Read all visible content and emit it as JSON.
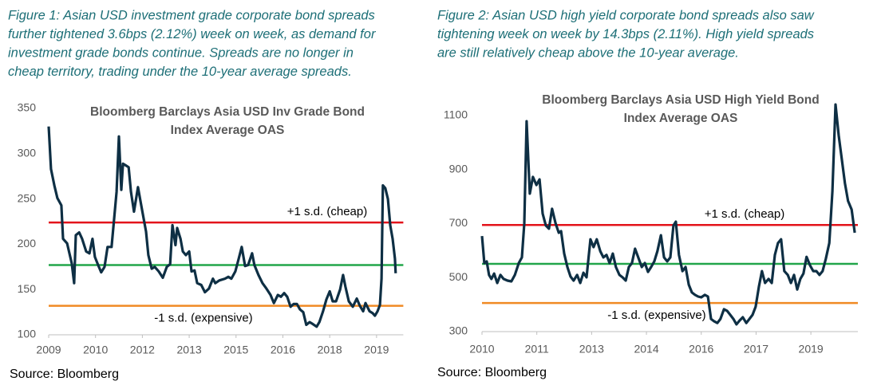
{
  "chart_data": [
    {
      "type": "line",
      "caption": [
        "Figure 1: Asian USD investment grade corporate bond spreads",
        "further tightened 3.6bps (2.12%) week on week, as demand for",
        "investment grade bonds continue. Spreads are no longer in",
        "cheap territory, trading under the 10-year average spreads."
      ],
      "title": [
        "Bloomberg Barclays Asia USD Inv Grade Bond",
        "Index Average OAS"
      ],
      "source": "Source: Bloomberg",
      "color": "#0e2f44",
      "xlim": [
        2009,
        2019.6
      ],
      "xticks": [
        {
          "value": 2009,
          "label": "2009"
        },
        {
          "value": 2010.4,
          "label": "2010"
        },
        {
          "value": 2011.8,
          "label": "2012"
        },
        {
          "value": 2013.2,
          "label": "2013"
        },
        {
          "value": 2014.6,
          "label": "2015"
        },
        {
          "value": 2016.0,
          "label": "2016"
        },
        {
          "value": 2017.4,
          "label": "2018"
        },
        {
          "value": 2018.8,
          "label": "2019"
        }
      ],
      "ylim": [
        100,
        350
      ],
      "yticks": [
        100,
        150,
        200,
        250,
        300,
        350
      ],
      "grid": false,
      "hlines": [
        {
          "value": 224,
          "color": "#e3131b",
          "label": "+1 s.d. (cheap)"
        },
        {
          "value": 177,
          "color": "#22a64a"
        },
        {
          "value": 132,
          "color": "#f08a24",
          "label": "-1 s.d. (expensive)"
        }
      ],
      "x": [
        2009.0,
        2009.07,
        2009.17,
        2009.26,
        2009.38,
        2009.43,
        2009.55,
        2009.69,
        2009.76,
        2009.81,
        2009.91,
        2010.0,
        2010.12,
        2010.22,
        2010.31,
        2010.38,
        2010.5,
        2010.57,
        2010.67,
        2010.76,
        2010.88,
        2011.03,
        2011.1,
        2011.17,
        2011.22,
        2011.31,
        2011.39,
        2011.46,
        2011.55,
        2011.67,
        2011.79,
        2011.91,
        2011.98,
        2012.08,
        2012.17,
        2012.29,
        2012.41,
        2012.53,
        2012.63,
        2012.7,
        2012.79,
        2012.84,
        2012.94,
        2013.01,
        2013.1,
        2013.2,
        2013.27,
        2013.36,
        2013.44,
        2013.56,
        2013.67,
        2013.79,
        2013.91,
        2013.98,
        2014.1,
        2014.27,
        2014.37,
        2014.46,
        2014.58,
        2014.68,
        2014.77,
        2014.87,
        2014.96,
        2015.08,
        2015.15,
        2015.27,
        2015.39,
        2015.51,
        2015.63,
        2015.73,
        2015.85,
        2015.94,
        2016.04,
        2016.13,
        2016.23,
        2016.32,
        2016.42,
        2016.51,
        2016.61,
        2016.7,
        2016.8,
        2016.89,
        2017.01,
        2017.09,
        2017.2,
        2017.3,
        2017.4,
        2017.49,
        2017.59,
        2017.71,
        2017.8,
        2017.87,
        2017.97,
        2018.09,
        2018.21,
        2018.3,
        2018.4,
        2018.47,
        2018.59,
        2018.68,
        2018.75,
        2018.83,
        2018.9,
        2018.95,
        2018.99,
        2019.06,
        2019.14,
        2019.21,
        2019.28,
        2019.35,
        2019.37
      ],
      "values": [
        330,
        283,
        265,
        251,
        243,
        206,
        201,
        179,
        157,
        210,
        213,
        206,
        192,
        190,
        206,
        186,
        175,
        169,
        175,
        197,
        197,
        258,
        319,
        260,
        289,
        287,
        285,
        258,
        236,
        263,
        238,
        214,
        188,
        173,
        175,
        170,
        163,
        175,
        178,
        221,
        199,
        218,
        206,
        192,
        188,
        192,
        170,
        171,
        157,
        155,
        147,
        151,
        162,
        157,
        160,
        162,
        164,
        162,
        170,
        184,
        197,
        176,
        177,
        190,
        177,
        166,
        157,
        151,
        144,
        135,
        144,
        142,
        146,
        142,
        131,
        134,
        134,
        128,
        125,
        111,
        114,
        112,
        109,
        114,
        126,
        139,
        148,
        137,
        137,
        150,
        166,
        153,
        137,
        131,
        140,
        132,
        126,
        135,
        126,
        124,
        121,
        126,
        133,
        162,
        265,
        262,
        250,
        221,
        206,
        184,
        168
      ]
    },
    {
      "type": "line",
      "caption": [
        "Figure 2: Asian USD high yield corporate bond spreads also saw",
        "tightening week on week by 14.3bps (2.11%). High yield spreads",
        "are still relatively cheap above the 10-year average."
      ],
      "title": [
        "Bloomberg Barclays Asia USD High Yield Bond",
        "Index Average OAS"
      ],
      "source": "Source: Bloomberg",
      "color": "#0e2f44",
      "xlim": [
        2010,
        2019.6
      ],
      "xticks": [
        {
          "value": 2010,
          "label": "2010"
        },
        {
          "value": 2011.4,
          "label": "2011"
        },
        {
          "value": 2012.8,
          "label": "2013"
        },
        {
          "value": 2014.2,
          "label": "2014"
        },
        {
          "value": 2015.6,
          "label": "2016"
        },
        {
          "value": 2017.0,
          "label": "2017"
        },
        {
          "value": 2018.4,
          "label": "2019"
        }
      ],
      "ylim": [
        300,
        1160
      ],
      "yticks": [
        300,
        500,
        700,
        900,
        1100
      ],
      "grid": false,
      "hlines": [
        {
          "value": 695,
          "color": "#e3131b",
          "label": "+1 s.d. (cheap)"
        },
        {
          "value": 551,
          "color": "#22a64a"
        },
        {
          "value": 406,
          "color": "#f08a24",
          "label": "-1 s.d. (expensive)"
        }
      ],
      "x": [
        2010.0,
        2010.06,
        2010.12,
        2010.18,
        2010.24,
        2010.31,
        2010.39,
        2010.47,
        2010.55,
        2010.65,
        2010.75,
        2010.84,
        2010.94,
        2011.02,
        2011.08,
        2011.14,
        2011.22,
        2011.3,
        2011.39,
        2011.47,
        2011.55,
        2011.63,
        2011.71,
        2011.79,
        2011.88,
        2011.96,
        2012.02,
        2012.1,
        2012.18,
        2012.26,
        2012.34,
        2012.43,
        2012.51,
        2012.59,
        2012.67,
        2012.77,
        2012.85,
        2012.93,
        2013.02,
        2013.1,
        2013.18,
        2013.26,
        2013.34,
        2013.42,
        2013.51,
        2013.59,
        2013.67,
        2013.75,
        2013.83,
        2013.91,
        2013.99,
        2014.08,
        2014.16,
        2014.24,
        2014.32,
        2014.4,
        2014.48,
        2014.57,
        2014.65,
        2014.73,
        2014.81,
        2014.89,
        2014.95,
        2015.03,
        2015.12,
        2015.2,
        2015.28,
        2015.36,
        2015.44,
        2015.52,
        2015.6,
        2015.69,
        2015.77,
        2015.85,
        2015.93,
        2016.01,
        2016.09,
        2016.18,
        2016.26,
        2016.34,
        2016.42,
        2016.5,
        2016.58,
        2016.66,
        2016.75,
        2016.83,
        2016.91,
        2016.99,
        2017.07,
        2017.15,
        2017.23,
        2017.32,
        2017.4,
        2017.48,
        2017.56,
        2017.64,
        2017.72,
        2017.81,
        2017.89,
        2017.97,
        2018.05,
        2018.13,
        2018.21,
        2018.29,
        2018.38,
        2018.46,
        2018.54,
        2018.62,
        2018.7,
        2018.78,
        2018.87,
        2018.95,
        2019.03,
        2019.11,
        2019.19,
        2019.27,
        2019.35,
        2019.44,
        2019.52
      ],
      "values": [
        654,
        554,
        560,
        510,
        495,
        515,
        480,
        510,
        495,
        489,
        486,
        510,
        554,
        575,
        701,
        1079,
        811,
        873,
        843,
        864,
        737,
        693,
        681,
        755,
        701,
        666,
        672,
        589,
        539,
        504,
        489,
        510,
        480,
        518,
        501,
        642,
        613,
        642,
        598,
        575,
        584,
        554,
        589,
        539,
        510,
        501,
        489,
        539,
        554,
        607,
        575,
        539,
        554,
        521,
        539,
        560,
        598,
        657,
        575,
        560,
        575,
        693,
        707,
        584,
        524,
        539,
        474,
        445,
        436,
        430,
        427,
        436,
        430,
        347,
        338,
        332,
        347,
        383,
        377,
        362,
        347,
        327,
        341,
        353,
        332,
        347,
        362,
        392,
        465,
        524,
        480,
        495,
        480,
        584,
        628,
        642,
        524,
        510,
        480,
        510,
        456,
        495,
        515,
        577,
        545,
        524,
        524,
        510,
        524,
        569,
        628,
        820,
        1141,
        1026,
        938,
        849,
        784,
        752,
        666
      ]
    }
  ]
}
